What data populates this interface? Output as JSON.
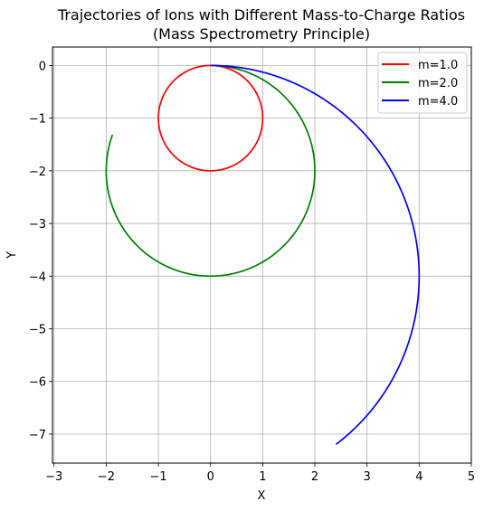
{
  "chart_data": {
    "type": "line",
    "title": "Trajectories of Ions with Different Mass-to-Charge Ratios",
    "subtitle": "(Mass Spectrometry Principle)",
    "xlabel": "X",
    "ylabel": "Y",
    "xlim": [
      -3.03,
      5.0
    ],
    "ylim": [
      -7.55,
      0.35
    ],
    "xticks": [
      -3,
      -2,
      -1,
      0,
      1,
      2,
      3,
      4,
      5
    ],
    "yticks": [
      0,
      -1,
      -2,
      -3,
      -4,
      -5,
      -6,
      -7
    ],
    "xtick_labels": [
      "−3",
      "−2",
      "−1",
      "0",
      "1",
      "2",
      "3",
      "4",
      "5"
    ],
    "ytick_labels": [
      "0",
      "−1",
      "−2",
      "−3",
      "−4",
      "−5",
      "−6",
      "−7"
    ],
    "grid": true,
    "legend_position": "top-right",
    "series": [
      {
        "name": "m=1.0",
        "color": "#ff0000",
        "center": [
          0,
          -1
        ],
        "radius": 1.0,
        "sweep_deg": 585
      },
      {
        "name": "m=2.0",
        "color": "#008000",
        "center": [
          0,
          -2
        ],
        "radius": 2.0,
        "sweep_deg": 290
      },
      {
        "name": "m=4.0",
        "color": "#0000ff",
        "center": [
          0,
          -4
        ],
        "radius": 4.0,
        "sweep_deg": 143
      }
    ]
  }
}
